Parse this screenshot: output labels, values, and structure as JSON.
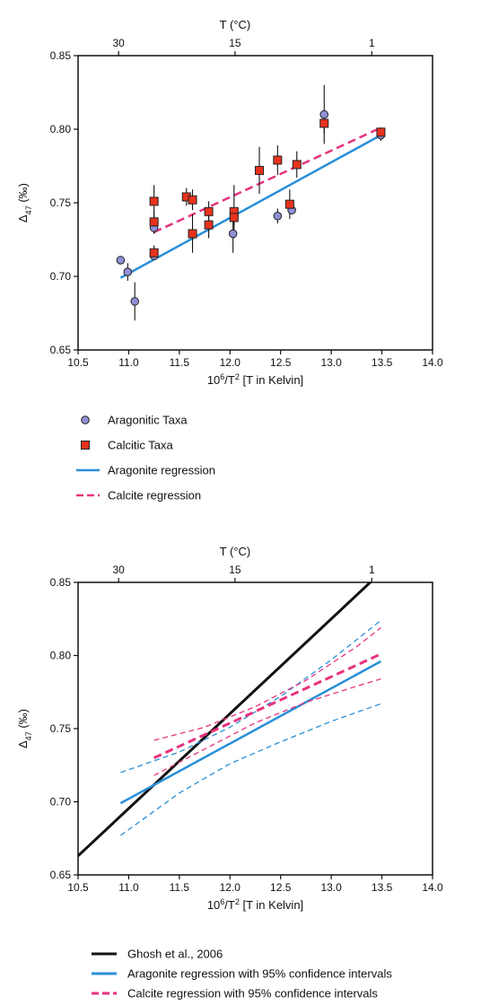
{
  "chart_data": [
    {
      "type": "scatter",
      "panel": "top",
      "title": "",
      "xlabel": "10⁶/T² [T in Kelvin]",
      "ylabel": "Δ47 (‰)",
      "x2label": "T (°C)",
      "xlim": [
        10.5,
        14.0
      ],
      "ylim": [
        0.65,
        0.85
      ],
      "xticks": [
        "10.5",
        "11.0",
        "11.5",
        "12.0",
        "12.5",
        "13.0",
        "13.5",
        "14.0"
      ],
      "yticks": [
        "0.65",
        "0.70",
        "0.75",
        "0.80",
        "0.85"
      ],
      "x2ticks": [
        {
          "label": "30",
          "x": 10.9
        },
        {
          "label": "15",
          "x": 12.05
        },
        {
          "label": "1",
          "x": 13.4
        }
      ],
      "grid": false,
      "series": [
        {
          "name": "Aragonitic Taxa",
          "kind": "points",
          "marker": "circle",
          "color": "#8f8fd8",
          "points": [
            {
              "x": 10.92,
              "y": 0.711,
              "err": 0
            },
            {
              "x": 10.99,
              "y": 0.703,
              "err": 0.006
            },
            {
              "x": 11.06,
              "y": 0.683,
              "err": 0.013
            },
            {
              "x": 11.25,
              "y": 0.733,
              "err": 0.004
            },
            {
              "x": 11.25,
              "y": 0.714,
              "err": 0.003
            },
            {
              "x": 12.03,
              "y": 0.729,
              "err": 0.013
            },
            {
              "x": 12.47,
              "y": 0.741,
              "err": 0.005
            },
            {
              "x": 12.61,
              "y": 0.745,
              "err": 0.003
            },
            {
              "x": 12.93,
              "y": 0.81,
              "err": 0.02
            },
            {
              "x": 13.49,
              "y": 0.796,
              "err": 0.004
            }
          ]
        },
        {
          "name": "Calcitic Taxa",
          "kind": "points",
          "marker": "square",
          "color": "#e8321e",
          "points": [
            {
              "x": 11.25,
              "y": 0.751,
              "err": 0.011
            },
            {
              "x": 11.25,
              "y": 0.737,
              "err": 0.008
            },
            {
              "x": 11.25,
              "y": 0.716,
              "err": 0.005
            },
            {
              "x": 11.57,
              "y": 0.754,
              "err": 0.006
            },
            {
              "x": 11.63,
              "y": 0.752,
              "err": 0.007
            },
            {
              "x": 11.63,
              "y": 0.729,
              "err": 0.013
            },
            {
              "x": 11.79,
              "y": 0.744,
              "err": 0.007
            },
            {
              "x": 11.79,
              "y": 0.735,
              "err": 0.009
            },
            {
              "x": 12.04,
              "y": 0.744,
              "err": 0.018
            },
            {
              "x": 12.04,
              "y": 0.74,
              "err": 0.006
            },
            {
              "x": 12.29,
              "y": 0.772,
              "err": 0.016
            },
            {
              "x": 12.47,
              "y": 0.779,
              "err": 0.01
            },
            {
              "x": 12.59,
              "y": 0.749,
              "err": 0.01
            },
            {
              "x": 12.66,
              "y": 0.776,
              "err": 0.009
            },
            {
              "x": 12.93,
              "y": 0.804,
              "err": 0.007
            },
            {
              "x": 13.49,
              "y": 0.798,
              "err": 0.003
            }
          ]
        },
        {
          "name": "Aragonite regression",
          "kind": "line",
          "color": "#2a8fd8",
          "style": "solid",
          "width": 2.5,
          "x": [
            10.92,
            13.49
          ],
          "y": [
            0.699,
            0.796
          ]
        },
        {
          "name": "Calcite regression",
          "kind": "line",
          "color": "#e8327e",
          "style": "dashed",
          "width": 2.5,
          "x": [
            11.25,
            13.49
          ],
          "y": [
            0.73,
            0.801
          ]
        }
      ],
      "legend": {
        "placement": "below",
        "items": [
          {
            "label": "Aragonitic Taxa",
            "marker": "circle",
            "color": "#8f8fd8"
          },
          {
            "label": "Calcitic Taxa",
            "marker": "square",
            "color": "#e8321e"
          },
          {
            "label": "Aragonite regression",
            "marker": "line",
            "color": "#2a8fd8",
            "dash": false
          },
          {
            "label": "Calcite regression",
            "marker": "line",
            "color": "#e8327e",
            "dash": true
          }
        ]
      }
    },
    {
      "type": "line",
      "panel": "bottom",
      "title": "",
      "xlabel": "10⁶/T² [T in Kelvin]",
      "ylabel": "Δ47 (‰)",
      "x2label": "T (°C)",
      "xlim": [
        10.5,
        14.0
      ],
      "ylim": [
        0.65,
        0.85
      ],
      "xticks": [
        "10.5",
        "11.0",
        "11.5",
        "12.0",
        "12.5",
        "13.0",
        "13.5",
        "14.0"
      ],
      "yticks": [
        "0.65",
        "0.70",
        "0.75",
        "0.80",
        "0.85"
      ],
      "x2ticks": [
        {
          "label": "30",
          "x": 10.9
        },
        {
          "label": "15",
          "x": 12.05
        },
        {
          "label": "1",
          "x": 13.4
        }
      ],
      "grid": false,
      "series": [
        {
          "name": "Ghosh et al., 2006",
          "kind": "line",
          "color": "#111111",
          "style": "solid",
          "width": 3,
          "x": [
            10.5,
            13.4
          ],
          "y": [
            0.663,
            0.851
          ]
        },
        {
          "name": "Aragonite regression",
          "kind": "line",
          "color": "#2a8fd8",
          "style": "solid",
          "width": 2.5,
          "x": [
            10.92,
            13.49
          ],
          "y": [
            0.699,
            0.796
          ]
        },
        {
          "name": "Aragonite 95% CI upper",
          "kind": "curve",
          "color": "#2a8fd8",
          "style": "dashed",
          "width": 1.3,
          "x": [
            10.92,
            11.5,
            12.0,
            12.5,
            13.0,
            13.49
          ],
          "y": [
            0.72,
            0.734,
            0.751,
            0.772,
            0.797,
            0.824
          ]
        },
        {
          "name": "Aragonite 95% CI lower",
          "kind": "curve",
          "color": "#2a8fd8",
          "style": "dashed",
          "width": 1.3,
          "x": [
            10.92,
            11.5,
            12.0,
            12.5,
            13.0,
            13.49
          ],
          "y": [
            0.677,
            0.706,
            0.726,
            0.741,
            0.755,
            0.767
          ]
        },
        {
          "name": "Calcite regression",
          "kind": "line",
          "color": "#e8327e",
          "style": "dashed",
          "width": 3,
          "x": [
            11.25,
            13.49
          ],
          "y": [
            0.73,
            0.801
          ]
        },
        {
          "name": "Calcite 95% CI upper",
          "kind": "curve",
          "color": "#e8327e",
          "style": "dashed",
          "width": 1.3,
          "x": [
            11.25,
            11.75,
            12.25,
            12.75,
            13.25,
            13.49
          ],
          "y": [
            0.742,
            0.751,
            0.765,
            0.783,
            0.806,
            0.819
          ]
        },
        {
          "name": "Calcite 95% CI lower",
          "kind": "curve",
          "color": "#e8327e",
          "style": "dashed",
          "width": 1.3,
          "x": [
            11.25,
            11.75,
            12.25,
            12.75,
            13.25,
            13.49
          ],
          "y": [
            0.718,
            0.736,
            0.754,
            0.768,
            0.779,
            0.784
          ]
        }
      ],
      "legend": {
        "placement": "below",
        "items": [
          {
            "label": "Ghosh et al., 2006",
            "marker": "line",
            "color": "#111111",
            "dash": false
          },
          {
            "label": "Aragonite regression with 95% confidence intervals",
            "marker": "line",
            "color": "#2a8fd8",
            "dash": false
          },
          {
            "label": "Calcite regression with 95% confidence intervals",
            "marker": "line",
            "color": "#e8327e",
            "dash": true
          }
        ]
      }
    }
  ]
}
